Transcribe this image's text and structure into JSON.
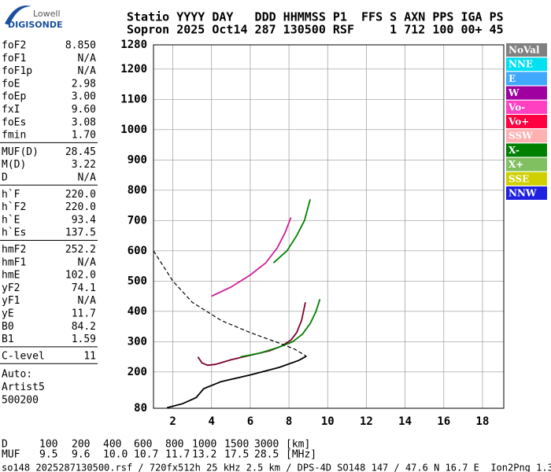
{
  "logo": {
    "top": "Lowell",
    "bottom": "DIGISONDE"
  },
  "header": {
    "line1": "Statio YYYY DAY   DDD HHMMSS P1  FFS S AXN PPS IGA PS",
    "line2": "Sopron 2025 Oct14 287 130500 RSF     1 712 100 00+ 45"
  },
  "params": [
    [
      [
        "foF2",
        "8.850"
      ],
      [
        "foF1",
        "N/A"
      ],
      [
        "foF1p",
        "N/A"
      ],
      [
        "foE",
        "2.98"
      ],
      [
        "foEp",
        "3.00"
      ],
      [
        "fxI",
        "9.60"
      ],
      [
        "foEs",
        "3.08"
      ],
      [
        "fmin",
        "1.70"
      ]
    ],
    [
      [
        "MUF(D)",
        "28.45"
      ],
      [
        "M(D)",
        "3.22"
      ],
      [
        "D",
        "N/A"
      ]
    ],
    [
      [
        "h`F",
        "220.0"
      ],
      [
        "h`F2",
        "220.0"
      ],
      [
        "h`E",
        "93.4"
      ],
      [
        "h`Es",
        "137.5"
      ]
    ],
    [
      [
        "hmF2",
        "252.2"
      ],
      [
        "hmF1",
        "N/A"
      ],
      [
        "hmE",
        "102.0"
      ],
      [
        "yF2",
        "74.1"
      ],
      [
        "yF1",
        "N/A"
      ],
      [
        "yE",
        "11.7"
      ],
      [
        "B0",
        "84.2"
      ],
      [
        "B1",
        "1.59"
      ]
    ],
    [
      [
        "C-level",
        "11"
      ]
    ]
  ],
  "auto": [
    "Auto:",
    "Artist5",
    "500200"
  ],
  "muf_table": {
    "d_row": [
      "D",
      "100",
      "200",
      "400",
      "600",
      "800",
      "1000",
      "1500",
      "3000",
      "[km]"
    ],
    "muf_row": [
      "MUF",
      "9.5",
      "9.6",
      "10.0",
      "10.7",
      "11.7",
      "13.2",
      "17.5",
      "28.5",
      "[MHz]"
    ]
  },
  "footer": "so148_2025287130500.rsf / 720fx512h 25 kHz 2.5 km / DPS-4D SO148 147 / 47.6 N 16.7 E  Ion2Png 1.3.20",
  "chart_data": {
    "type": "line",
    "xlim": [
      1,
      19.1
    ],
    "ylim": [
      80,
      1280
    ],
    "xticks": [
      2,
      4,
      6,
      8,
      10,
      12,
      14,
      16,
      18
    ],
    "yticks": [
      80,
      200,
      300,
      400,
      500,
      600,
      700,
      800,
      900,
      1000,
      1100,
      1200,
      1280
    ],
    "grid": true,
    "series": [
      {
        "color": "#7a0030",
        "style": "solid",
        "x": [
          3.3,
          3.5,
          3.8,
          4.2,
          5,
          6,
          7,
          7.6,
          8.1,
          8.4,
          8.65,
          8.85
        ],
        "values": [
          250,
          230,
          222,
          225,
          240,
          255,
          270,
          285,
          305,
          330,
          370,
          430
        ]
      },
      {
        "color": "#008000",
        "style": "solid",
        "x": [
          5.5,
          6.5,
          7.5,
          8.2,
          8.7,
          9.1,
          9.4,
          9.6
        ],
        "values": [
          250,
          262,
          282,
          300,
          325,
          360,
          400,
          440
        ]
      },
      {
        "color": "#d0209a",
        "style": "solid",
        "x": [
          4,
          5,
          6,
          6.8,
          7.4,
          7.8,
          8.1
        ],
        "values": [
          450,
          480,
          520,
          560,
          610,
          660,
          710
        ]
      },
      {
        "color": "#008000",
        "style": "solid",
        "x": [
          7.2,
          7.9,
          8.4,
          8.8,
          9.1
        ],
        "values": [
          560,
          600,
          650,
          700,
          770
        ]
      },
      {
        "color": "#000000",
        "style": "solid",
        "x": [
          1.7,
          2.5,
          3.2,
          3.6,
          4.5,
          6,
          7.5,
          8.5,
          8.9
        ],
        "values": [
          82,
          95,
          115,
          145,
          168,
          190,
          215,
          238,
          252
        ]
      },
      {
        "color": "#000000",
        "style": "dashed",
        "x": [
          1,
          2,
          3,
          4.5,
          6,
          7.5,
          8.3,
          8.9
        ],
        "values": [
          600,
          500,
          430,
          370,
          330,
          295,
          275,
          252
        ]
      }
    ],
    "legend": [
      {
        "name": "NoVal",
        "color": "#808080"
      },
      {
        "name": "NNE",
        "color": "#00e0f0"
      },
      {
        "name": "E",
        "color": "#40a8ff"
      },
      {
        "name": "W",
        "color": "#a000a0"
      },
      {
        "name": "Vo-",
        "color": "#ff40c0"
      },
      {
        "name": "Vo+",
        "color": "#ff0040"
      },
      {
        "name": "SSW",
        "color": "#ffb0b0"
      },
      {
        "name": "X-",
        "color": "#008000"
      },
      {
        "name": "X+",
        "color": "#80c060"
      },
      {
        "name": "SSE",
        "color": "#d0d000"
      },
      {
        "name": "NNW",
        "color": "#2020e0"
      }
    ]
  }
}
